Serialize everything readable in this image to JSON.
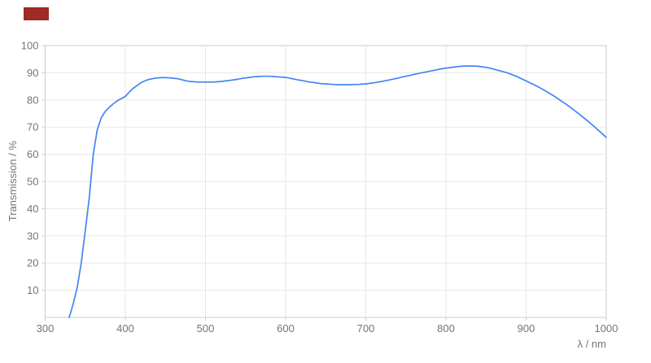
{
  "marker": {
    "color": "#9e2b25"
  },
  "colors": {
    "line": "#4285f4",
    "grid": "#e7e7e7",
    "frame": "#cccccc",
    "tick": "#cccccc",
    "tick_text": "#757575",
    "background": "#ffffff"
  },
  "chart_data": {
    "type": "line",
    "title": "",
    "xlabel": "λ / nm",
    "ylabel": "Transmission / %",
    "xlim": [
      300,
      1000
    ],
    "ylim": [
      0,
      100
    ],
    "x_ticks": [
      300,
      400,
      500,
      600,
      700,
      800,
      900,
      1000
    ],
    "y_ticks": [
      10,
      20,
      30,
      40,
      50,
      60,
      70,
      80,
      90,
      100
    ],
    "grid": true,
    "legend_position": "none",
    "series": [
      {
        "name": "Transmission",
        "x": [
          330,
          335,
          340,
          345,
          350,
          355,
          360,
          365,
          370,
          375,
          380,
          385,
          390,
          395,
          400,
          405,
          410,
          415,
          420,
          425,
          430,
          435,
          440,
          445,
          450,
          455,
          460,
          465,
          470,
          475,
          480,
          485,
          490,
          495,
          500,
          505,
          510,
          515,
          520,
          525,
          530,
          535,
          540,
          545,
          550,
          555,
          560,
          565,
          570,
          575,
          580,
          585,
          590,
          595,
          600,
          605,
          610,
          615,
          620,
          625,
          630,
          635,
          640,
          645,
          650,
          655,
          660,
          665,
          670,
          675,
          680,
          685,
          690,
          695,
          700,
          705,
          710,
          715,
          720,
          725,
          730,
          735,
          740,
          745,
          750,
          755,
          760,
          765,
          770,
          775,
          780,
          785,
          790,
          795,
          800,
          805,
          810,
          815,
          820,
          825,
          830,
          835,
          840,
          845,
          850,
          855,
          860,
          865,
          870,
          875,
          880,
          885,
          890,
          895,
          900,
          905,
          910,
          915,
          920,
          925,
          930,
          935,
          940,
          945,
          950,
          955,
          960,
          965,
          970,
          975,
          980,
          985,
          990,
          995,
          1000
        ],
        "y": [
          0,
          5,
          11,
          20,
          32,
          44,
          60,
          69,
          73.5,
          75.8,
          77.3,
          78.6,
          79.7,
          80.5,
          81.3,
          82.9,
          84.3,
          85.4,
          86.4,
          87.1,
          87.6,
          87.9,
          88.1,
          88.2,
          88.2,
          88.1,
          88.0,
          87.8,
          87.5,
          87.1,
          86.8,
          86.7,
          86.6,
          86.6,
          86.6,
          86.6,
          86.6,
          86.7,
          86.8,
          87.0,
          87.2,
          87.4,
          87.6,
          87.9,
          88.1,
          88.3,
          88.5,
          88.6,
          88.7,
          88.7,
          88.7,
          88.6,
          88.5,
          88.4,
          88.3,
          88.0,
          87.7,
          87.4,
          87.2,
          86.9,
          86.6,
          86.4,
          86.2,
          86.0,
          85.9,
          85.8,
          85.7,
          85.6,
          85.6,
          85.6,
          85.6,
          85.7,
          85.7,
          85.8,
          85.9,
          86.1,
          86.3,
          86.6,
          86.8,
          87.1,
          87.4,
          87.7,
          88.0,
          88.4,
          88.7,
          89.0,
          89.4,
          89.7,
          90.0,
          90.3,
          90.6,
          90.9,
          91.2,
          91.5,
          91.7,
          91.9,
          92.1,
          92.3,
          92.4,
          92.5,
          92.5,
          92.5,
          92.4,
          92.2,
          92.0,
          91.7,
          91.3,
          90.9,
          90.5,
          90.1,
          89.6,
          89.0,
          88.4,
          87.7,
          87.0,
          86.3,
          85.6,
          84.8,
          84.0,
          83.2,
          82.3,
          81.4,
          80.4,
          79.4,
          78.4,
          77.3,
          76.2,
          75.1,
          73.9,
          72.7,
          71.5,
          70.2,
          68.9,
          67.6,
          66.2
        ]
      }
    ]
  }
}
